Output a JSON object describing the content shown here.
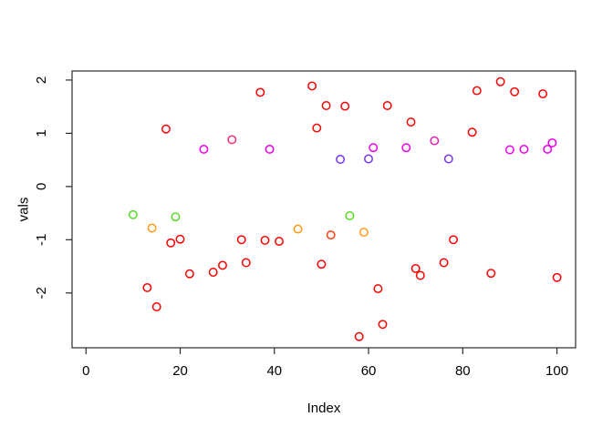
{
  "chart_data": {
    "type": "scatter",
    "title": "",
    "xlabel": "Index",
    "ylabel": "vals",
    "xlim": [
      -2.96,
      103.96
    ],
    "ylim": [
      -3.03,
      2.17
    ],
    "xticks": [
      0,
      20,
      40,
      60,
      80,
      100
    ],
    "yticks": [
      -2,
      -1,
      0,
      1,
      2
    ],
    "grid": false,
    "legend": "none",
    "marker": "open-circle",
    "axis_color": "#2b2b2b",
    "palette": {
      "red": "#FF0000",
      "vermillion": "#FF3D0D",
      "orange": "#FF9912",
      "green": "#55DD22",
      "purple": "#7733EE",
      "magenta": "#EE00EE",
      "magenta_pink": "#F01BB0",
      "pink": "#FF2D78"
    },
    "points": [
      {
        "x": 10,
        "y": -0.53,
        "c": "green"
      },
      {
        "x": 13,
        "y": -1.9,
        "c": "red"
      },
      {
        "x": 14,
        "y": -0.78,
        "c": "orange"
      },
      {
        "x": 15,
        "y": -2.26,
        "c": "red"
      },
      {
        "x": 17,
        "y": 1.08,
        "c": "red"
      },
      {
        "x": 18,
        "y": -1.06,
        "c": "red"
      },
      {
        "x": 19,
        "y": -0.57,
        "c": "green"
      },
      {
        "x": 20,
        "y": -0.99,
        "c": "red"
      },
      {
        "x": 22,
        "y": -1.64,
        "c": "red"
      },
      {
        "x": 25,
        "y": 0.7,
        "c": "magenta"
      },
      {
        "x": 27,
        "y": -1.61,
        "c": "red"
      },
      {
        "x": 29,
        "y": -1.48,
        "c": "red"
      },
      {
        "x": 31,
        "y": 0.88,
        "c": "pink"
      },
      {
        "x": 33,
        "y": -1.0,
        "c": "red"
      },
      {
        "x": 34,
        "y": -1.43,
        "c": "red"
      },
      {
        "x": 37,
        "y": 1.77,
        "c": "red"
      },
      {
        "x": 38,
        "y": -1.01,
        "c": "red"
      },
      {
        "x": 39,
        "y": 0.7,
        "c": "magenta"
      },
      {
        "x": 41,
        "y": -1.03,
        "c": "red"
      },
      {
        "x": 45,
        "y": -0.8,
        "c": "orange"
      },
      {
        "x": 48,
        "y": 1.89,
        "c": "red"
      },
      {
        "x": 49,
        "y": 1.1,
        "c": "red"
      },
      {
        "x": 50,
        "y": -1.46,
        "c": "red"
      },
      {
        "x": 51,
        "y": 1.52,
        "c": "red"
      },
      {
        "x": 52,
        "y": -0.91,
        "c": "vermillion"
      },
      {
        "x": 54,
        "y": 0.51,
        "c": "purple"
      },
      {
        "x": 55,
        "y": 1.51,
        "c": "red"
      },
      {
        "x": 56,
        "y": -0.55,
        "c": "green"
      },
      {
        "x": 58,
        "y": -2.82,
        "c": "red"
      },
      {
        "x": 59,
        "y": -0.86,
        "c": "orange"
      },
      {
        "x": 60,
        "y": 0.52,
        "c": "purple"
      },
      {
        "x": 61,
        "y": 0.73,
        "c": "magenta"
      },
      {
        "x": 62,
        "y": -1.92,
        "c": "red"
      },
      {
        "x": 63,
        "y": -2.59,
        "c": "red"
      },
      {
        "x": 64,
        "y": 1.52,
        "c": "red"
      },
      {
        "x": 68,
        "y": 0.73,
        "c": "magenta"
      },
      {
        "x": 69,
        "y": 1.21,
        "c": "red"
      },
      {
        "x": 70,
        "y": -1.54,
        "c": "red"
      },
      {
        "x": 71,
        "y": -1.67,
        "c": "red"
      },
      {
        "x": 74,
        "y": 0.86,
        "c": "magenta_pink"
      },
      {
        "x": 76,
        "y": -1.43,
        "c": "red"
      },
      {
        "x": 77,
        "y": 0.52,
        "c": "purple"
      },
      {
        "x": 78,
        "y": -1.0,
        "c": "red"
      },
      {
        "x": 82,
        "y": 1.02,
        "c": "red"
      },
      {
        "x": 83,
        "y": 1.8,
        "c": "red"
      },
      {
        "x": 86,
        "y": -1.63,
        "c": "red"
      },
      {
        "x": 88,
        "y": 1.97,
        "c": "red"
      },
      {
        "x": 90,
        "y": 0.69,
        "c": "magenta"
      },
      {
        "x": 91,
        "y": 1.78,
        "c": "red"
      },
      {
        "x": 93,
        "y": 0.7,
        "c": "magenta"
      },
      {
        "x": 97,
        "y": 1.74,
        "c": "red"
      },
      {
        "x": 98,
        "y": 0.7,
        "c": "magenta"
      },
      {
        "x": 99,
        "y": 0.82,
        "c": "magenta"
      },
      {
        "x": 100,
        "y": -1.71,
        "c": "red"
      }
    ]
  }
}
